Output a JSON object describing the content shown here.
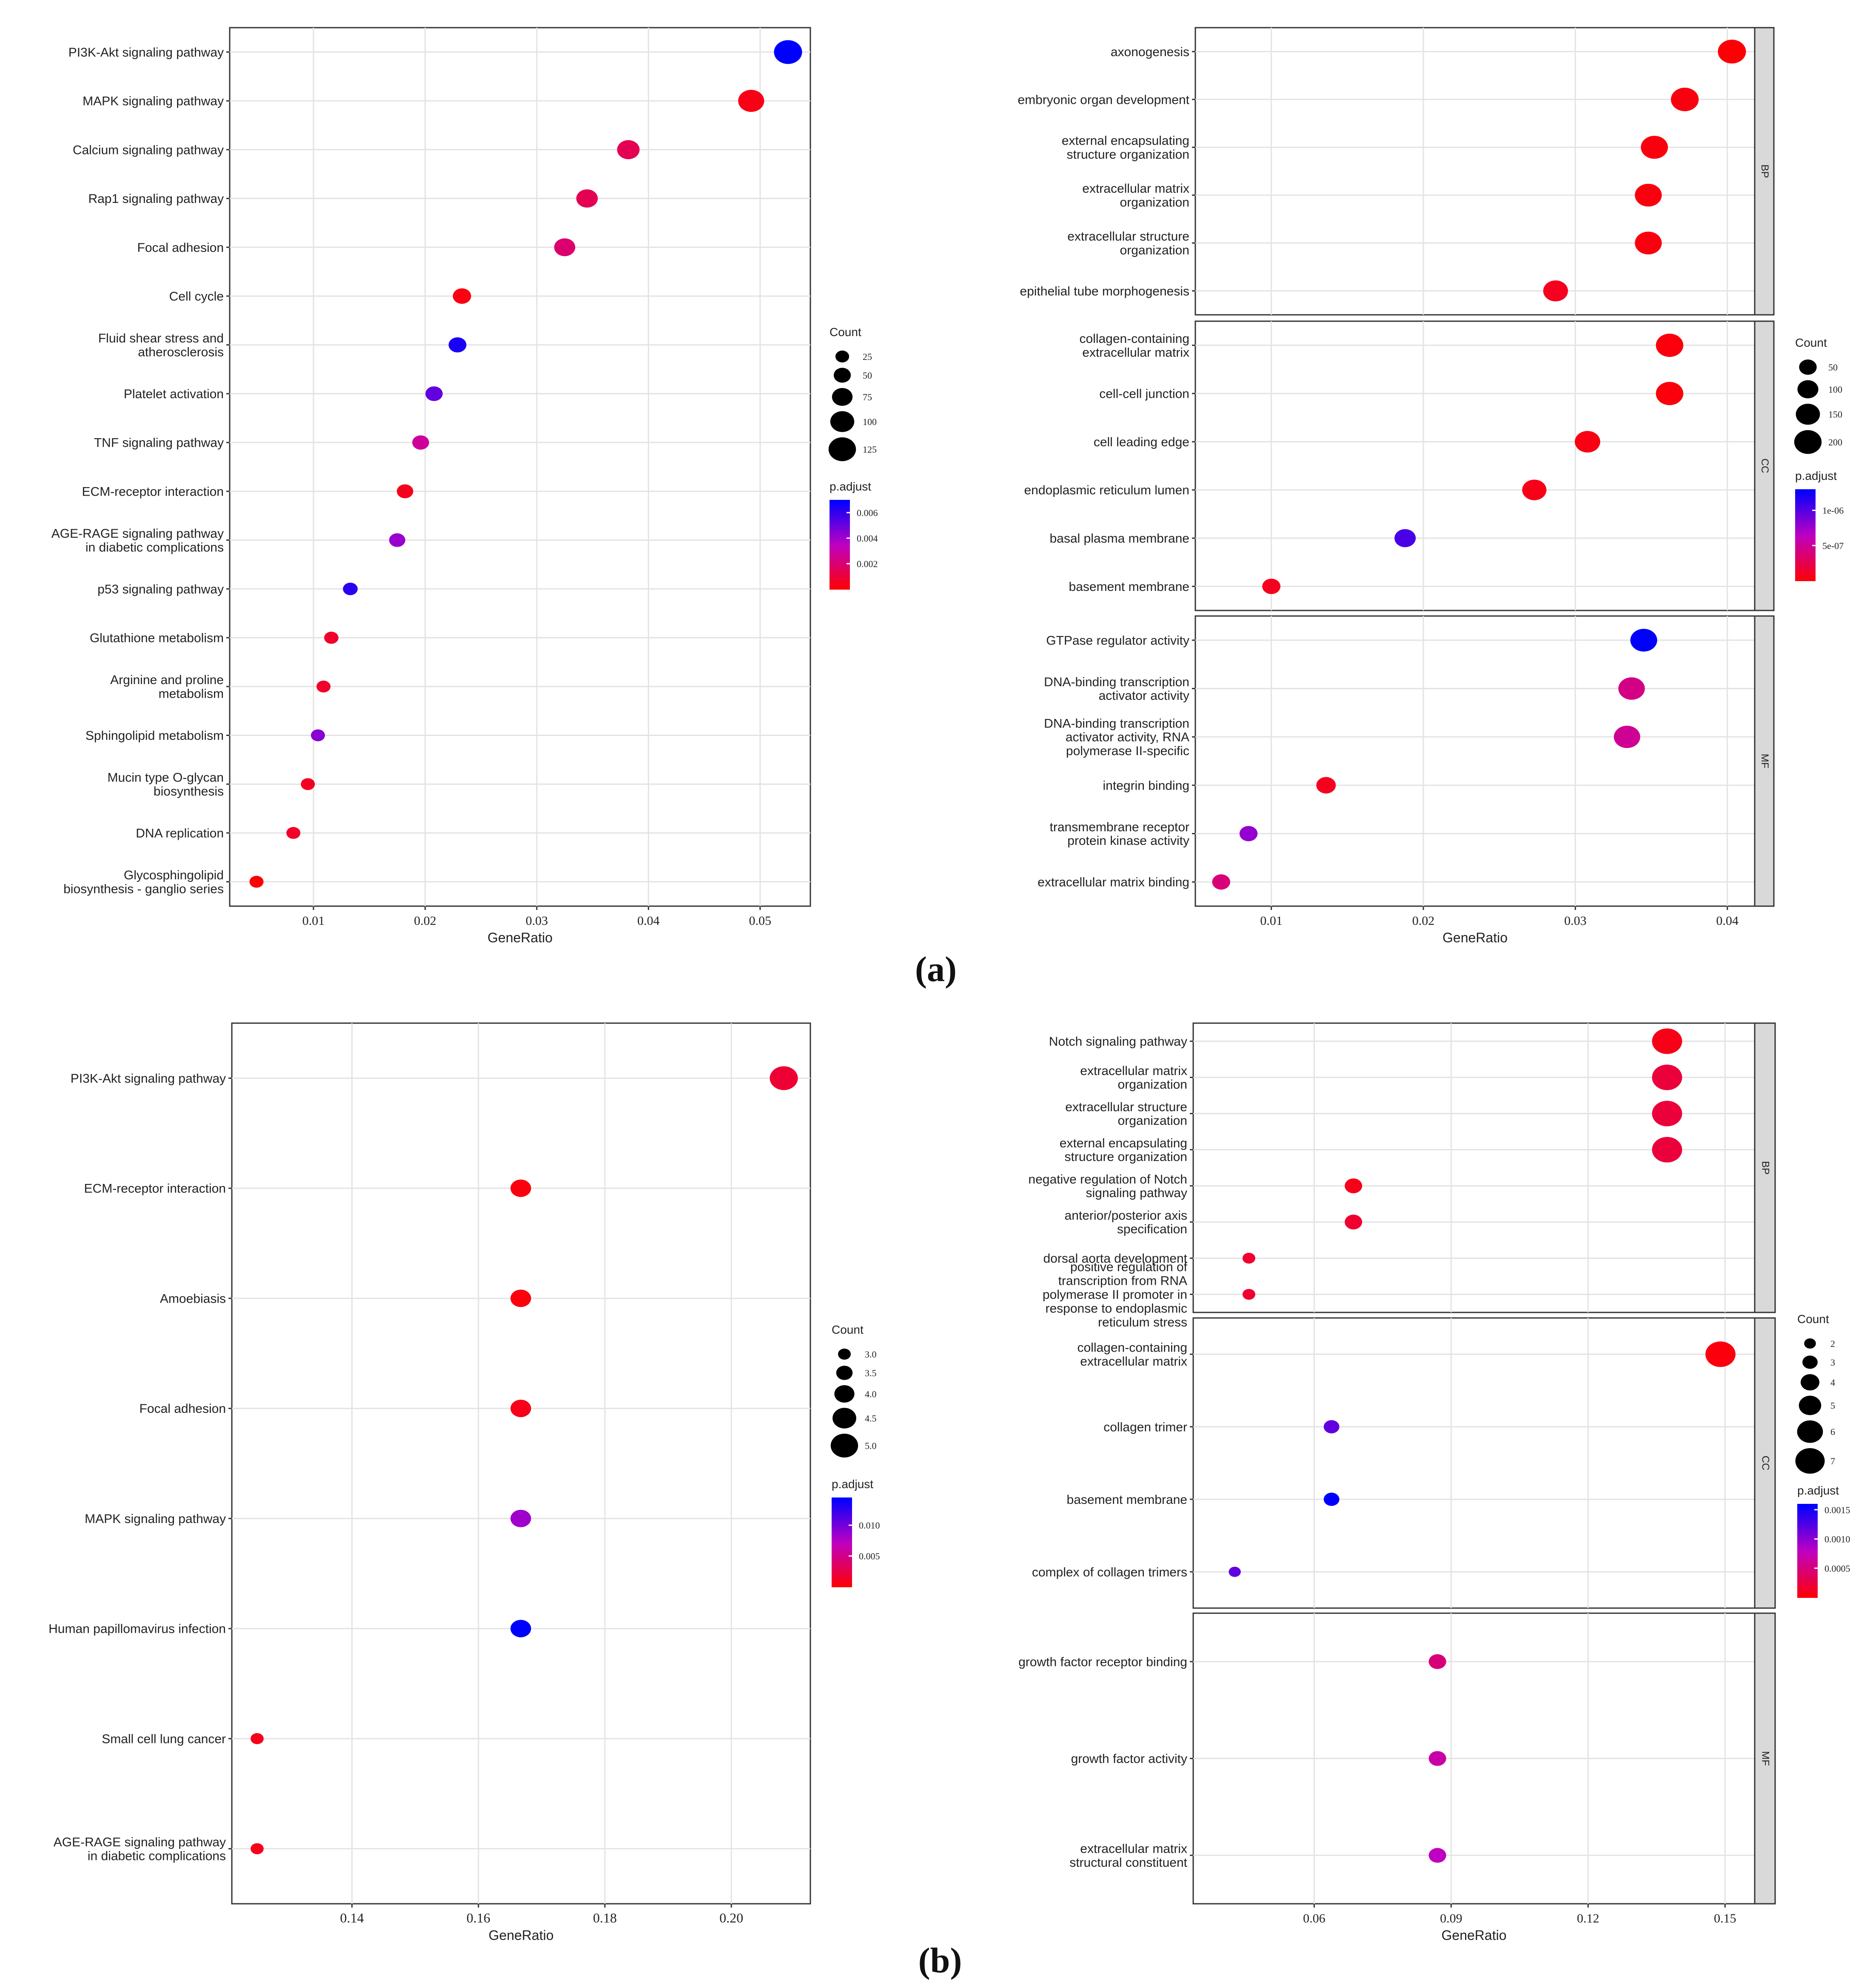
{
  "figure": {
    "label_a": "(a)",
    "label_b": "(b)"
  },
  "colors": {
    "low_padj": "#ff0000",
    "mid_padj": "#c000c0",
    "high_padj": "#0000ff",
    "panel_bg": "#ffffff",
    "grid": "#e3e3e3",
    "strip_bg": "#d9d9d9"
  },
  "chart_data": [
    {
      "id": "a-kegg",
      "type": "scatter",
      "title": "",
      "xlabel": "GeneRatio",
      "ylabel": "",
      "xlim": [
        0.0025,
        0.0545
      ],
      "xticks": [
        0.01,
        0.02,
        0.03,
        0.04,
        0.05
      ],
      "xtick_labels": [
        "0.01",
        "0.02",
        "0.03",
        "0.04",
        "0.05"
      ],
      "legend": {
        "count_title": "Count",
        "count_values": [
          25,
          50,
          75,
          100,
          125
        ],
        "count_labels": [
          "25",
          "50",
          "75",
          "100",
          "125"
        ],
        "padj_title": "p.adjust",
        "padj_range": [
          0,
          0.007
        ],
        "padj_ticks": [
          0.006,
          0.004,
          0.002
        ],
        "padj_tick_labels": [
          "0.006",
          "0.004",
          "0.002"
        ]
      },
      "facets": [
        {
          "strip": "",
          "terms": [
            {
              "label": [
                "PI3K-Akt signaling pathway"
              ],
              "x": 0.0525,
              "count": 125,
              "padj": 0.007
            },
            {
              "label": [
                "MAPK signaling pathway"
              ],
              "x": 0.0492,
              "count": 110,
              "padj": 0.0004
            },
            {
              "label": [
                "Calcium signaling pathway"
              ],
              "x": 0.0382,
              "count": 85,
              "padj": 0.0015
            },
            {
              "label": [
                "Rap1 signaling pathway"
              ],
              "x": 0.0345,
              "count": 78,
              "padj": 0.0015
            },
            {
              "label": [
                "Focal adhesion"
              ],
              "x": 0.0325,
              "count": 75,
              "padj": 0.002
            },
            {
              "label": [
                "Cell cycle"
              ],
              "x": 0.0233,
              "count": 55,
              "padj": 0.0003
            },
            {
              "label": [
                "Fluid shear stress and",
                "atherosclerosis"
              ],
              "x": 0.0229,
              "count": 52,
              "padj": 0.0065
            },
            {
              "label": [
                "Platelet activation"
              ],
              "x": 0.0208,
              "count": 48,
              "padj": 0.0052
            },
            {
              "label": [
                "TNF signaling pathway"
              ],
              "x": 0.0196,
              "count": 45,
              "padj": 0.0028
            },
            {
              "label": [
                "ECM-receptor interaction"
              ],
              "x": 0.0182,
              "count": 42,
              "padj": 0.0005
            },
            {
              "label": [
                "AGE-RAGE signaling pathway",
                "in diabetic complications"
              ],
              "x": 0.0175,
              "count": 40,
              "padj": 0.0042
            },
            {
              "label": [
                "p53 signaling pathway"
              ],
              "x": 0.0133,
              "count": 30,
              "padj": 0.0062
            },
            {
              "label": [
                "Glutathione metabolism"
              ],
              "x": 0.0116,
              "count": 27,
              "padj": 0.0008
            },
            {
              "label": [
                "Arginine and proline",
                "metabolism"
              ],
              "x": 0.0109,
              "count": 25,
              "padj": 0.0008
            },
            {
              "label": [
                "Sphingolipid metabolism"
              ],
              "x": 0.0104,
              "count": 24,
              "padj": 0.0045
            },
            {
              "label": [
                "Mucin type O-glycan",
                "biosynthesis"
              ],
              "x": 0.0095,
              "count": 22,
              "padj": 0.0006
            },
            {
              "label": [
                "DNA replication"
              ],
              "x": 0.0082,
              "count": 19,
              "padj": 0.0008
            },
            {
              "label": [
                "Glycosphingolipid",
                "biosynthesis - ganglio series"
              ],
              "x": 0.0049,
              "count": 11,
              "padj": 0.0001
            }
          ]
        }
      ]
    },
    {
      "id": "a-go",
      "type": "scatter",
      "title": "",
      "xlabel": "GeneRatio",
      "ylabel": "",
      "xlim": [
        0.005,
        0.0418
      ],
      "xticks": [
        0.01,
        0.02,
        0.03,
        0.04
      ],
      "xtick_labels": [
        "0.01",
        "0.02",
        "0.03",
        "0.04"
      ],
      "legend": {
        "count_title": "Count",
        "count_values": [
          50,
          100,
          150,
          200
        ],
        "count_labels": [
          "50",
          "100",
          "150",
          "200"
        ],
        "padj_title": "p.adjust",
        "padj_range": [
          0,
          1.3e-06
        ],
        "padj_ticks": [
          1e-06,
          5e-07
        ],
        "padj_tick_labels": [
          "1e-06",
          "5e-07"
        ]
      },
      "facets": [
        {
          "strip": "BP",
          "terms": [
            {
              "label": [
                "axonogenesis"
              ],
              "x": 0.0403,
              "count": 210,
              "padj": 2e-08
            },
            {
              "label": [
                "embryonic organ development"
              ],
              "x": 0.0372,
              "count": 195,
              "padj": 5e-08
            },
            {
              "label": [
                "external encapsulating",
                "structure organization"
              ],
              "x": 0.0352,
              "count": 185,
              "padj": 5e-08
            },
            {
              "label": [
                "extracellular matrix",
                "organization"
              ],
              "x": 0.0348,
              "count": 182,
              "padj": 5e-08
            },
            {
              "label": [
                "extracellular structure",
                "organization"
              ],
              "x": 0.0348,
              "count": 182,
              "padj": 5e-08
            },
            {
              "label": [
                "epithelial tube morphogenesis"
              ],
              "x": 0.0287,
              "count": 150,
              "padj": 1e-07
            }
          ]
        },
        {
          "strip": "CC",
          "terms": [
            {
              "label": [
                "collagen-containing",
                "extracellular matrix"
              ],
              "x": 0.0362,
              "count": 190,
              "padj": 4e-08
            },
            {
              "label": [
                "cell-cell junction"
              ],
              "x": 0.0362,
              "count": 190,
              "padj": 4e-08
            },
            {
              "label": [
                "cell leading edge"
              ],
              "x": 0.0308,
              "count": 160,
              "padj": 6e-08
            },
            {
              "label": [
                "endoplasmic reticulum lumen"
              ],
              "x": 0.0273,
              "count": 143,
              "padj": 8e-08
            },
            {
              "label": [
                "basal plasma membrane"
              ],
              "x": 0.0188,
              "count": 98,
              "padj": 1.05e-06
            },
            {
              "label": [
                "basement membrane"
              ],
              "x": 0.01,
              "count": 52,
              "padj": 1e-07
            }
          ]
        },
        {
          "strip": "MF",
          "terms": [
            {
              "label": [
                "GTPase regulator activity"
              ],
              "x": 0.0345,
              "count": 181,
              "padj": 1.3e-06
            },
            {
              "label": [
                "DNA-binding transcription",
                "activator activity"
              ],
              "x": 0.0337,
              "count": 176,
              "padj": 4.5e-07
            },
            {
              "label": [
                "DNA-binding transcription",
                "activator activity, RNA",
                "polymerase II-specific"
              ],
              "x": 0.0334,
              "count": 174,
              "padj": 5e-07
            },
            {
              "label": [
                "integrin binding"
              ],
              "x": 0.0136,
              "count": 71,
              "padj": 1e-07
            },
            {
              "label": [
                "transmembrane receptor",
                "protein kinase activity"
              ],
              "x": 0.0085,
              "count": 44,
              "padj": 8e-07
            },
            {
              "label": [
                "extracellular matrix binding"
              ],
              "x": 0.0067,
              "count": 35,
              "padj": 4e-07
            }
          ]
        }
      ]
    },
    {
      "id": "b-kegg",
      "type": "scatter",
      "title": "",
      "xlabel": "GeneRatio",
      "ylabel": "",
      "xlim": [
        0.121,
        0.2125
      ],
      "xticks": [
        0.14,
        0.16,
        0.18,
        0.2
      ],
      "xtick_labels": [
        "0.14",
        "0.16",
        "0.18",
        "0.20"
      ],
      "legend": {
        "count_title": "Count",
        "count_values": [
          3.0,
          3.5,
          4.0,
          4.5,
          5.0
        ],
        "count_labels": [
          "3.0",
          "3.5",
          "4.0",
          "4.5",
          "5.0"
        ],
        "padj_title": "p.adjust",
        "padj_range": [
          0,
          0.0145
        ],
        "padj_ticks": [
          0.01,
          0.005
        ],
        "padj_tick_labels": [
          "0.010",
          "0.005"
        ]
      },
      "facets": [
        {
          "strip": "",
          "terms": [
            {
              "label": [
                "PI3K-Akt signaling pathway"
              ],
              "x": 0.2083,
              "count": 5,
              "padj": 0.002
            },
            {
              "label": [
                "ECM-receptor interaction"
              ],
              "x": 0.1667,
              "count": 4,
              "padj": 0.0005
            },
            {
              "label": [
                "Amoebiasis"
              ],
              "x": 0.1667,
              "count": 4,
              "padj": 0.0005
            },
            {
              "label": [
                "Focal adhesion"
              ],
              "x": 0.1667,
              "count": 4,
              "padj": 0.001
            },
            {
              "label": [
                "MAPK signaling pathway"
              ],
              "x": 0.1667,
              "count": 4,
              "padj": 0.0085
            },
            {
              "label": [
                "Human papillomavirus infection"
              ],
              "x": 0.1667,
              "count": 4,
              "padj": 0.0145
            },
            {
              "label": [
                "Small cell lung cancer"
              ],
              "x": 0.125,
              "count": 3,
              "padj": 0.001
            },
            {
              "label": [
                "AGE-RAGE signaling pathway",
                "in diabetic complications"
              ],
              "x": 0.125,
              "count": 3,
              "padj": 0.001
            }
          ]
        }
      ]
    },
    {
      "id": "b-go",
      "type": "scatter",
      "title": "",
      "xlabel": "GeneRatio",
      "ylabel": "",
      "xlim": [
        0.0335,
        0.1565
      ],
      "xticks": [
        0.06,
        0.09,
        0.12,
        0.15
      ],
      "xtick_labels": [
        "0.06",
        "0.09",
        "0.12",
        "0.15"
      ],
      "legend": {
        "count_title": "Count",
        "count_values": [
          2,
          3,
          4,
          5,
          6,
          7
        ],
        "count_labels": [
          "2",
          "3",
          "4",
          "5",
          "6",
          "7"
        ],
        "padj_title": "p.adjust",
        "padj_range": [
          0,
          0.0016
        ],
        "padj_ticks": [
          0.0015,
          0.001,
          0.0005
        ],
        "padj_tick_labels": [
          "0.0015",
          "0.0010",
          "0.0005"
        ]
      },
      "facets": [
        {
          "strip": "BP",
          "terms": [
            {
              "label": [
                "Notch signaling pathway"
              ],
              "x": 0.1373,
              "count": 7,
              "padj": 0.0001
            },
            {
              "label": [
                "extracellular matrix",
                "organization"
              ],
              "x": 0.1373,
              "count": 7,
              "padj": 0.00025
            },
            {
              "label": [
                "extracellular structure",
                "organization"
              ],
              "x": 0.1373,
              "count": 7,
              "padj": 0.00025
            },
            {
              "label": [
                "external encapsulating",
                "structure organization"
              ],
              "x": 0.1373,
              "count": 7,
              "padj": 0.00025
            },
            {
              "label": [
                "negative regulation of Notch",
                "signaling pathway"
              ],
              "x": 0.0686,
              "count": 3.5,
              "padj": 0.0001
            },
            {
              "label": [
                "anterior/posterior axis",
                "specification"
              ],
              "x": 0.0686,
              "count": 3.5,
              "padj": 0.0002
            },
            {
              "label": [
                "dorsal aorta development"
              ],
              "x": 0.0457,
              "count": 2.2,
              "padj": 0.0002
            },
            {
              "label": [
                "positive regulation of",
                "transcription from RNA",
                "polymerase II promoter in",
                "response to endoplasmic",
                "reticulum stress"
              ],
              "x": 0.0457,
              "count": 2.2,
              "padj": 0.0002
            }
          ]
        },
        {
          "strip": "CC",
          "terms": [
            {
              "label": [
                "collagen-containing",
                "extracellular matrix"
              ],
              "x": 0.149,
              "count": 7,
              "padj": 5e-05
            },
            {
              "label": [
                "collagen trimer"
              ],
              "x": 0.0638,
              "count": 3,
              "padj": 0.0012
            },
            {
              "label": [
                "basement membrane"
              ],
              "x": 0.0638,
              "count": 3,
              "padj": 0.0016
            },
            {
              "label": [
                "complex of collagen trimers"
              ],
              "x": 0.0426,
              "count": 2,
              "padj": 0.0012
            }
          ]
        },
        {
          "strip": "MF",
          "terms": [
            {
              "label": [
                "growth factor receptor binding"
              ],
              "x": 0.087,
              "count": 3.5,
              "padj": 0.0005
            },
            {
              "label": [
                "growth factor activity"
              ],
              "x": 0.087,
              "count": 3.5,
              "padj": 0.0007
            },
            {
              "label": [
                "extracellular matrix",
                "structural constituent"
              ],
              "x": 0.087,
              "count": 3.5,
              "padj": 0.0008
            }
          ]
        }
      ]
    }
  ]
}
